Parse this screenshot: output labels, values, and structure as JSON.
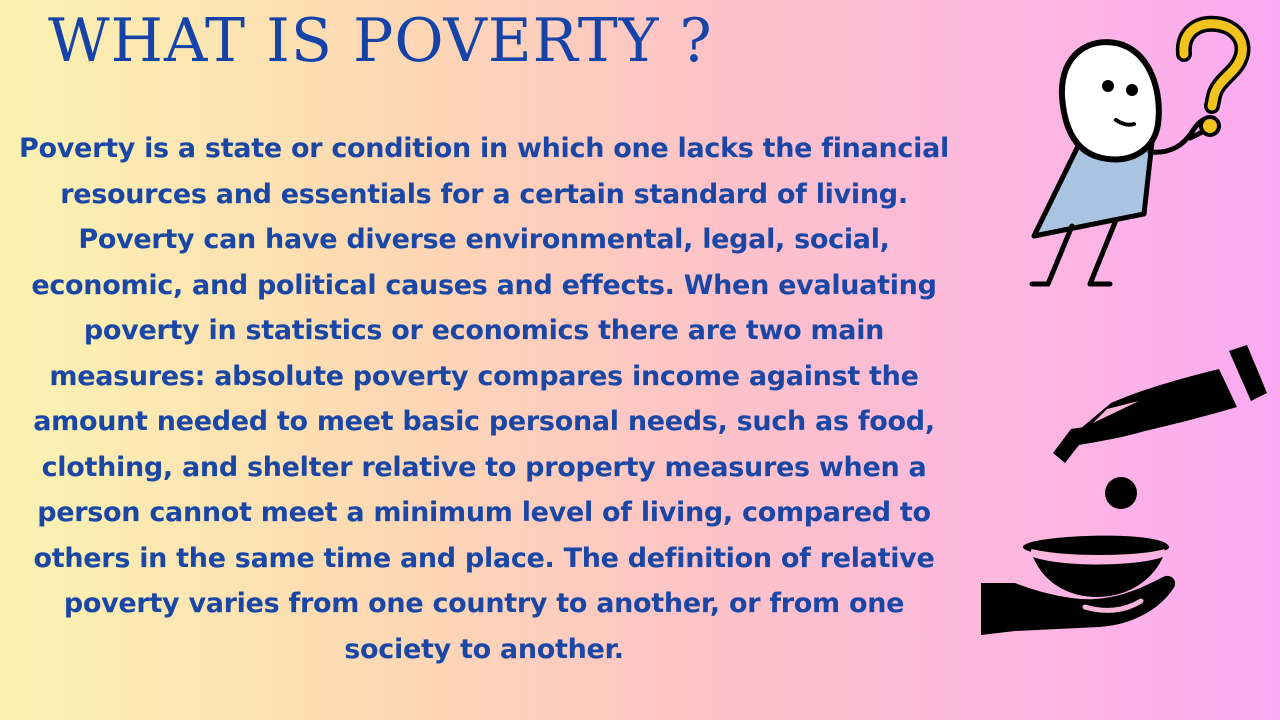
{
  "page": {
    "title": "WHAT IS POVERTY ?",
    "body": "Poverty is a state or condition in which one lacks the financial resources and essentials for a certain standard of living. Poverty can have diverse environmental, legal, social, economic, and political causes and effects. When evaluating poverty in statistics or economics there are two main measures: absolute poverty compares income against the amount needed to meet basic personal needs, such as food, clothing, and shelter relative to property measures when a person cannot meet a minimum level of living, compared to others in the same time and place. The definition of relative poverty varies from one country to another, or from one society to another."
  },
  "illustrations": {
    "thinker": "confused-stick-figure-icon",
    "question_mark": "question-mark-icon",
    "charity": "giving-hand-icon",
    "bowl": "begging-bowl-icon",
    "coin": "coin-icon"
  },
  "colors": {
    "text": "#1a47a6",
    "title": "#1543a8",
    "question_mark": "#f2c31d",
    "shirt": "#a9c4e0",
    "bg_left": "#fbf3b1",
    "bg_right": "#fbaaf2"
  }
}
